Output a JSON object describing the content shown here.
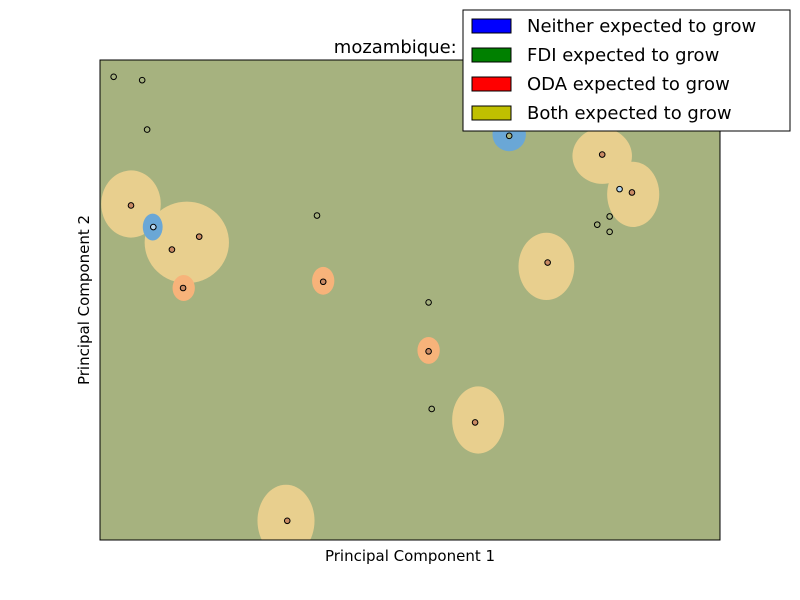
{
  "chart_data": {
    "type": "scatter",
    "title": "mozambique: SV",
    "xlabel": "Principal Component 1",
    "ylabel": "Principal Component 2",
    "background_class_color": "#a6b27f",
    "legend": [
      {
        "label": "Neither expected to grow",
        "color": "#0000ff"
      },
      {
        "label": "FDI expected to grow",
        "color": "#008000"
      },
      {
        "label": "ODA expected to grow",
        "color": "#ff0000"
      },
      {
        "label": "Both expected to grow",
        "color": "#c0c000"
      }
    ],
    "region_colors": {
      "both": "#e8cf8e",
      "oda": "#f7b37a",
      "neither": "#6aa7d6"
    },
    "point_colors": {
      "fdi": "#a6b27f",
      "both": "#c98a64",
      "neither": "#b6d6ee"
    },
    "regions": [
      {
        "class": "both",
        "x": 0.05,
        "y": 0.7,
        "rx": 0.048,
        "ry": 0.07
      },
      {
        "class": "both",
        "x": 0.14,
        "y": 0.62,
        "rx": 0.068,
        "ry": 0.085
      },
      {
        "class": "both",
        "x": 0.72,
        "y": 0.57,
        "rx": 0.045,
        "ry": 0.07
      },
      {
        "class": "both",
        "x": 0.81,
        "y": 0.8,
        "rx": 0.048,
        "ry": 0.058
      },
      {
        "class": "both",
        "x": 0.86,
        "y": 0.72,
        "rx": 0.042,
        "ry": 0.068
      },
      {
        "class": "both",
        "x": 0.61,
        "y": 0.25,
        "rx": 0.042,
        "ry": 0.07
      },
      {
        "class": "both",
        "x": 0.3,
        "y": 0.04,
        "rx": 0.046,
        "ry": 0.075
      },
      {
        "class": "oda",
        "x": 0.135,
        "y": 0.525,
        "rx": 0.018,
        "ry": 0.027
      },
      {
        "class": "oda",
        "x": 0.36,
        "y": 0.54,
        "rx": 0.018,
        "ry": 0.029
      },
      {
        "class": "oda",
        "x": 0.53,
        "y": 0.395,
        "rx": 0.018,
        "ry": 0.028
      },
      {
        "class": "neither",
        "x": 0.085,
        "y": 0.652,
        "rx": 0.016,
        "ry": 0.028
      },
      {
        "class": "neither",
        "x": 0.66,
        "y": 0.845,
        "rx": 0.027,
        "ry": 0.035
      }
    ],
    "points": [
      {
        "x": 0.022,
        "y": 0.965,
        "class": "fdi"
      },
      {
        "x": 0.068,
        "y": 0.958,
        "class": "fdi"
      },
      {
        "x": 0.076,
        "y": 0.855,
        "class": "fdi"
      },
      {
        "x": 0.05,
        "y": 0.697,
        "class": "both"
      },
      {
        "x": 0.086,
        "y": 0.652,
        "class": "neither"
      },
      {
        "x": 0.116,
        "y": 0.605,
        "class": "both"
      },
      {
        "x": 0.16,
        "y": 0.632,
        "class": "both"
      },
      {
        "x": 0.134,
        "y": 0.525,
        "class": "both"
      },
      {
        "x": 0.35,
        "y": 0.676,
        "class": "fdi"
      },
      {
        "x": 0.36,
        "y": 0.538,
        "class": "both"
      },
      {
        "x": 0.53,
        "y": 0.495,
        "class": "fdi"
      },
      {
        "x": 0.53,
        "y": 0.393,
        "class": "both"
      },
      {
        "x": 0.535,
        "y": 0.273,
        "class": "fdi"
      },
      {
        "x": 0.605,
        "y": 0.245,
        "class": "both"
      },
      {
        "x": 0.722,
        "y": 0.578,
        "class": "both"
      },
      {
        "x": 0.66,
        "y": 0.842,
        "class": "fdi"
      },
      {
        "x": 0.81,
        "y": 0.803,
        "class": "both"
      },
      {
        "x": 0.838,
        "y": 0.731,
        "class": "neither"
      },
      {
        "x": 0.858,
        "y": 0.724,
        "class": "both"
      },
      {
        "x": 0.802,
        "y": 0.657,
        "class": "fdi"
      },
      {
        "x": 0.822,
        "y": 0.674,
        "class": "fdi"
      },
      {
        "x": 0.822,
        "y": 0.642,
        "class": "fdi"
      },
      {
        "x": 0.302,
        "y": 0.04,
        "class": "both"
      }
    ],
    "xlim": [
      0,
      1
    ],
    "ylim": [
      0,
      1
    ],
    "ticks": "none",
    "grid": false,
    "legend_position": "top-right"
  }
}
